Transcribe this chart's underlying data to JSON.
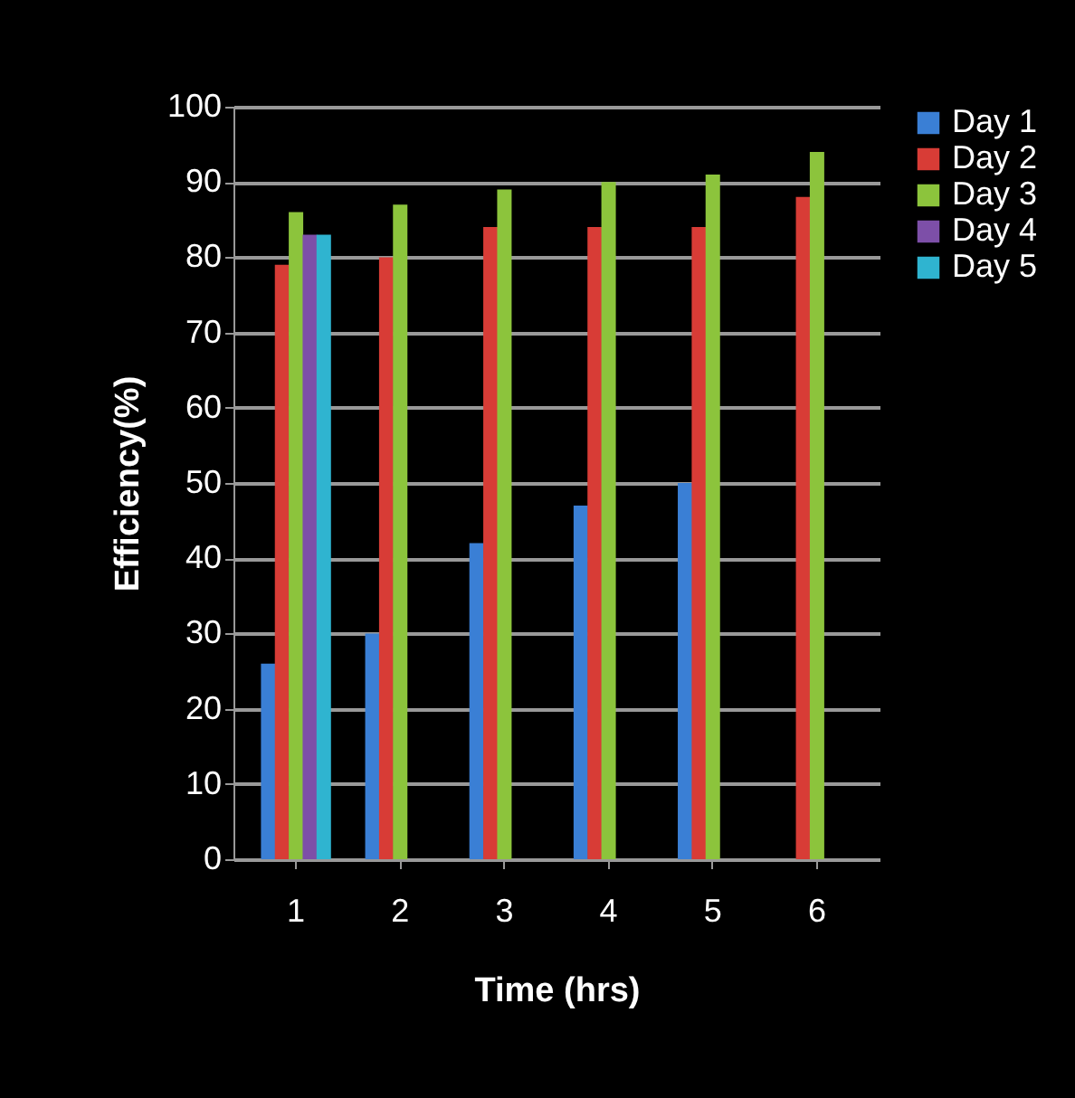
{
  "chart_data": {
    "type": "bar",
    "xlabel": "Time (hrs)",
    "ylabel": "Efficiency(%)",
    "categories": [
      "1",
      "2",
      "3",
      "4",
      "5",
      "6"
    ],
    "series": [
      {
        "name": "Day 1",
        "color": "#3a7fd5",
        "values": [
          26,
          30,
          42,
          47,
          50,
          null
        ]
      },
      {
        "name": "Day 2",
        "color": "#d83c36",
        "values": [
          79,
          80,
          84,
          84,
          84,
          88
        ]
      },
      {
        "name": "Day 3",
        "color": "#8cc43c",
        "values": [
          86,
          87,
          89,
          90,
          91,
          94
        ]
      },
      {
        "name": "Day 4",
        "color": "#7d4fa8",
        "values": [
          83,
          null,
          null,
          null,
          null,
          null
        ]
      },
      {
        "name": "Day 5",
        "color": "#2fb4d0",
        "values": [
          83,
          null,
          null,
          null,
          null,
          null
        ]
      }
    ],
    "ylim": [
      0,
      100
    ],
    "yticks": [
      0,
      10,
      20,
      30,
      40,
      50,
      60,
      70,
      80,
      90,
      100
    ],
    "grid": "y",
    "legend": "right"
  }
}
